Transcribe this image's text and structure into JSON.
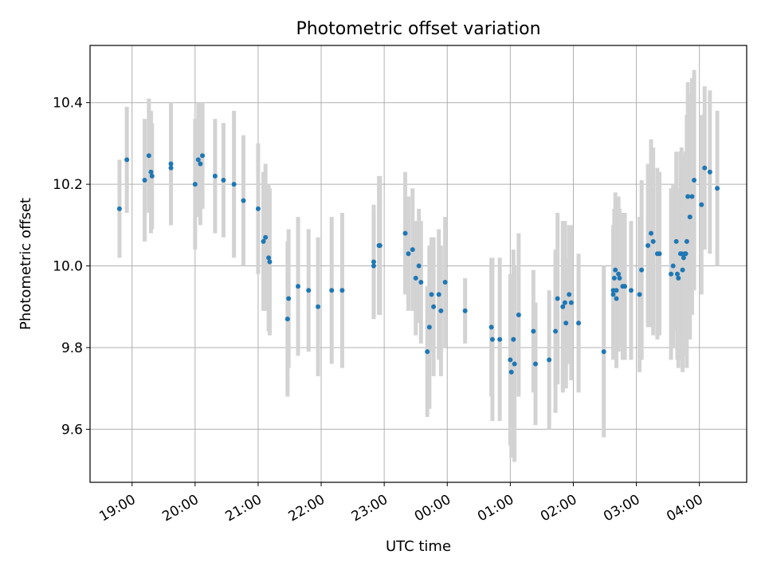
{
  "chart_data": {
    "type": "scatter",
    "title": "Photometric offset variation",
    "xlabel": "UTC time",
    "ylabel": "Photometric offset",
    "xlim": [
      "18:20",
      "04:45"
    ],
    "ylim": [
      9.47,
      10.54
    ],
    "grid": true,
    "x_ticks": [
      "19:00",
      "20:00",
      "21:00",
      "22:00",
      "23:00",
      "00:00",
      "01:00",
      "02:00",
      "03:00",
      "04:00"
    ],
    "y_ticks": [
      "9.6",
      "9.8",
      "10.0",
      "10.2",
      "10.4"
    ],
    "colors": {
      "points": "#1f77b4",
      "errorbars": "#d3d3d3",
      "grid": "#b0b0b0"
    },
    "series": [
      {
        "x": [
          "18:48",
          "18:55",
          "19:12",
          "19:16",
          "19:18",
          "19:19",
          "19:37",
          "19:37",
          "20:00",
          "20:03",
          "20:05",
          "20:07",
          "20:19",
          "20:27",
          "20:37",
          "20:46",
          "21:00",
          "21:05",
          "21:07",
          "21:10",
          "21:11",
          "21:28",
          "21:29",
          "21:38",
          "21:48",
          "21:57",
          "22:10",
          "22:20",
          "22:50",
          "22:50",
          "22:55",
          "22:56",
          "23:20",
          "23:23",
          "23:27",
          "23:30",
          "23:33",
          "23:35",
          "23:41",
          "23:43",
          "23:45",
          "23:47",
          "23:52",
          "23:54",
          "23:58",
          "00:17",
          "00:42",
          "00:43",
          "00:50",
          "01:00",
          "01:01",
          "01:03",
          "01:04",
          "01:08",
          "01:22",
          "01:24",
          "01:37",
          "01:43",
          "01:45",
          "01:50",
          "01:52",
          "01:53",
          "01:56",
          "01:58",
          "02:05",
          "02:29",
          "02:38",
          "02:38",
          "02:39",
          "02:40",
          "02:41",
          "02:41",
          "02:43",
          "02:44",
          "02:47",
          "02:49",
          "02:55",
          "03:03",
          "03:05",
          "03:11",
          "03:14",
          "03:16",
          "03:20",
          "03:22",
          "03:33",
          "03:35",
          "03:38",
          "03:39",
          "03:40",
          "03:42",
          "03:43",
          "03:44",
          "03:45",
          "03:46",
          "03:47",
          "03:48",
          "03:49",
          "03:51",
          "03:53",
          "03:55",
          "04:02",
          "04:05",
          "04:10",
          "04:17"
        ],
        "y": [
          10.14,
          10.26,
          10.21,
          10.27,
          10.23,
          10.22,
          10.25,
          10.24,
          10.2,
          10.26,
          10.25,
          10.27,
          10.22,
          10.21,
          10.2,
          10.16,
          10.14,
          10.06,
          10.07,
          10.02,
          10.01,
          9.87,
          9.92,
          9.95,
          9.94,
          9.9,
          9.94,
          9.94,
          10.01,
          10.0,
          10.05,
          10.05,
          10.08,
          10.03,
          10.04,
          9.97,
          10.0,
          9.96,
          9.79,
          9.85,
          9.93,
          9.9,
          9.93,
          9.89,
          9.96,
          9.89,
          9.85,
          9.82,
          9.82,
          9.77,
          9.74,
          9.82,
          9.76,
          9.88,
          9.84,
          9.76,
          9.77,
          9.84,
          9.92,
          9.9,
          9.91,
          9.86,
          9.93,
          9.91,
          9.86,
          9.79,
          9.93,
          9.94,
          9.97,
          9.99,
          9.94,
          9.92,
          9.98,
          9.97,
          9.95,
          9.95,
          9.94,
          9.93,
          9.99,
          10.05,
          10.08,
          10.06,
          10.03,
          10.03,
          9.98,
          10.0,
          10.06,
          9.98,
          9.97,
          10.03,
          10.03,
          9.99,
          10.02,
          10.03,
          10.03,
          10.06,
          10.17,
          10.12,
          10.17,
          10.21,
          10.15,
          10.24,
          10.23,
          10.19
        ],
        "yerr": [
          0.12,
          0.13,
          0.15,
          0.14,
          0.15,
          0.13,
          0.15,
          0.14,
          0.16,
          0.14,
          0.15,
          0.13,
          0.14,
          0.14,
          0.18,
          0.16,
          0.16,
          0.17,
          0.18,
          0.18,
          0.18,
          0.19,
          0.17,
          0.17,
          0.15,
          0.17,
          0.18,
          0.19,
          0.14,
          0.13,
          0.17,
          0.17,
          0.15,
          0.14,
          0.15,
          0.14,
          0.14,
          0.15,
          0.16,
          0.2,
          0.14,
          0.17,
          0.16,
          0.16,
          0.16,
          0.08,
          0.17,
          0.2,
          0.2,
          0.21,
          0.21,
          0.22,
          0.24,
          0.2,
          0.15,
          0.15,
          0.17,
          0.2,
          0.21,
          0.21,
          0.2,
          0.16,
          0.17,
          0.19,
          0.17,
          0.21,
          0.16,
          0.16,
          0.17,
          0.19,
          0.16,
          0.17,
          0.19,
          0.17,
          0.18,
          0.18,
          0.17,
          0.19,
          0.22,
          0.2,
          0.23,
          0.23,
          0.21,
          0.2,
          0.21,
          0.2,
          0.22,
          0.21,
          0.22,
          0.25,
          0.26,
          0.25,
          0.23,
          0.24,
          0.25,
          0.31,
          0.28,
          0.3,
          0.29,
          0.27,
          0.22,
          0.2,
          0.2,
          0.19
        ]
      }
    ]
  }
}
